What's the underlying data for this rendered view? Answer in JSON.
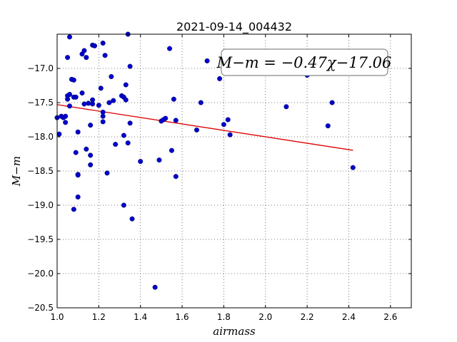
{
  "chart_data": {
    "type": "scatter",
    "title": "2021-09-14_004432",
    "xlabel": "airmass",
    "ylabel": "M−m",
    "xlim": [
      1.0,
      2.7
    ],
    "ylim": [
      -20.5,
      -16.5
    ],
    "y_inverted": true,
    "grid": true,
    "grid_style": "dotted",
    "x_ticks": [
      "1.0",
      "1.2",
      "1.4",
      "1.6",
      "1.8",
      "2.0",
      "2.2",
      "2.4",
      "2.6"
    ],
    "x_tick_values": [
      1.0,
      1.2,
      1.4,
      1.6,
      1.8,
      2.0,
      2.2,
      2.4,
      2.6
    ],
    "y_ticks": [
      "−17.0",
      "−17.5",
      "−18.0",
      "−18.5",
      "−19.0",
      "−19.5",
      "−20.0",
      "−20.5"
    ],
    "y_tick_values": [
      -17.0,
      -17.5,
      -18.0,
      -18.5,
      -19.0,
      -19.5,
      -20.0,
      -20.5
    ],
    "annotation": "M−m = −0.47χ−17.06",
    "colors": {
      "points": "#0000cc",
      "fit_line": "#dd0000",
      "grid": "#555555"
    },
    "fit": {
      "slope": -0.47,
      "intercept": -17.06,
      "x_range": [
        1.0,
        2.42
      ]
    },
    "points": [
      {
        "x": 1.0,
        "y": -17.72
      },
      {
        "x": 1.01,
        "y": -17.96
      },
      {
        "x": 1.02,
        "y": -17.7
      },
      {
        "x": 1.03,
        "y": -17.72
      },
      {
        "x": 1.04,
        "y": -17.79
      },
      {
        "x": 1.04,
        "y": -17.7
      },
      {
        "x": 1.05,
        "y": -16.84
      },
      {
        "x": 1.05,
        "y": -17.45
      },
      {
        "x": 1.05,
        "y": -17.4
      },
      {
        "x": 1.06,
        "y": -16.54
      },
      {
        "x": 1.06,
        "y": -17.38
      },
      {
        "x": 1.06,
        "y": -17.55
      },
      {
        "x": 1.07,
        "y": -17.16
      },
      {
        "x": 1.08,
        "y": -17.17
      },
      {
        "x": 1.08,
        "y": -17.42
      },
      {
        "x": 1.08,
        "y": -19.06
      },
      {
        "x": 1.09,
        "y": -17.42
      },
      {
        "x": 1.09,
        "y": -18.23
      },
      {
        "x": 1.1,
        "y": -18.55
      },
      {
        "x": 1.1,
        "y": -18.56
      },
      {
        "x": 1.1,
        "y": -18.88
      },
      {
        "x": 1.1,
        "y": -17.93
      },
      {
        "x": 1.12,
        "y": -16.79
      },
      {
        "x": 1.12,
        "y": -17.36
      },
      {
        "x": 1.13,
        "y": -17.52
      },
      {
        "x": 1.13,
        "y": -16.74
      },
      {
        "x": 1.14,
        "y": -16.84
      },
      {
        "x": 1.14,
        "y": -18.18
      },
      {
        "x": 1.15,
        "y": -17.51
      },
      {
        "x": 1.16,
        "y": -17.83
      },
      {
        "x": 1.16,
        "y": -18.27
      },
      {
        "x": 1.16,
        "y": -18.41
      },
      {
        "x": 1.17,
        "y": -16.66
      },
      {
        "x": 1.17,
        "y": -17.46
      },
      {
        "x": 1.17,
        "y": -17.52
      },
      {
        "x": 1.18,
        "y": -16.67
      },
      {
        "x": 1.2,
        "y": -17.54
      },
      {
        "x": 1.21,
        "y": -17.29
      },
      {
        "x": 1.22,
        "y": -16.63
      },
      {
        "x": 1.22,
        "y": -17.64
      },
      {
        "x": 1.22,
        "y": -17.7
      },
      {
        "x": 1.22,
        "y": -17.78
      },
      {
        "x": 1.23,
        "y": -16.81
      },
      {
        "x": 1.24,
        "y": -18.53
      },
      {
        "x": 1.25,
        "y": -17.5
      },
      {
        "x": 1.26,
        "y": -17.12
      },
      {
        "x": 1.27,
        "y": -17.47
      },
      {
        "x": 1.28,
        "y": -18.11
      },
      {
        "x": 1.31,
        "y": -17.4
      },
      {
        "x": 1.32,
        "y": -17.42
      },
      {
        "x": 1.32,
        "y": -17.98
      },
      {
        "x": 1.32,
        "y": -19.0
      },
      {
        "x": 1.33,
        "y": -17.24
      },
      {
        "x": 1.33,
        "y": -17.46
      },
      {
        "x": 1.34,
        "y": -16.5
      },
      {
        "x": 1.34,
        "y": -18.09
      },
      {
        "x": 1.35,
        "y": -16.97
      },
      {
        "x": 1.35,
        "y": -17.8
      },
      {
        "x": 1.36,
        "y": -19.2
      },
      {
        "x": 1.4,
        "y": -18.36
      },
      {
        "x": 1.47,
        "y": -20.2
      },
      {
        "x": 1.49,
        "y": -18.34
      },
      {
        "x": 1.5,
        "y": -17.77
      },
      {
        "x": 1.51,
        "y": -17.75
      },
      {
        "x": 1.52,
        "y": -17.73
      },
      {
        "x": 1.54,
        "y": -16.71
      },
      {
        "x": 1.55,
        "y": -18.2
      },
      {
        "x": 1.56,
        "y": -17.45
      },
      {
        "x": 1.57,
        "y": -17.76
      },
      {
        "x": 1.57,
        "y": -18.58
      },
      {
        "x": 1.67,
        "y": -17.9
      },
      {
        "x": 1.69,
        "y": -17.5
      },
      {
        "x": 1.72,
        "y": -16.89
      },
      {
        "x": 1.78,
        "y": -17.15
      },
      {
        "x": 1.8,
        "y": -17.82
      },
      {
        "x": 1.82,
        "y": -17.75
      },
      {
        "x": 1.83,
        "y": -17.97
      },
      {
        "x": 2.1,
        "y": -17.56
      },
      {
        "x": 2.2,
        "y": -17.1
      },
      {
        "x": 2.3,
        "y": -17.84
      },
      {
        "x": 2.32,
        "y": -17.5
      },
      {
        "x": 2.42,
        "y": -18.45
      }
    ]
  }
}
